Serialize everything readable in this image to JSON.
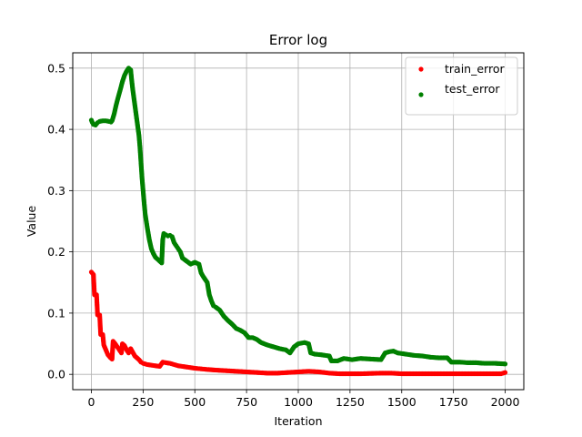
{
  "chart_data": {
    "type": "scatter",
    "title": "Error log",
    "xlabel": "Iteration",
    "ylabel": "Value",
    "xlim": [
      -90,
      2090
    ],
    "ylim": [
      -0.025,
      0.525
    ],
    "xticks": [
      0,
      250,
      500,
      750,
      1000,
      1250,
      1500,
      1750,
      2000
    ],
    "yticks": [
      0.0,
      0.1,
      0.2,
      0.3,
      0.4,
      0.5
    ],
    "ytick_labels": [
      "0.0",
      "0.1",
      "0.2",
      "0.3",
      "0.4",
      "0.5"
    ],
    "grid": true,
    "legend_position": "top-right",
    "series": [
      {
        "name": "train_error",
        "color": "#ff0000",
        "marker": "dot",
        "points": [
          [
            0,
            0.167
          ],
          [
            10,
            0.163
          ],
          [
            15,
            0.13
          ],
          [
            25,
            0.13
          ],
          [
            30,
            0.097
          ],
          [
            40,
            0.097
          ],
          [
            45,
            0.065
          ],
          [
            55,
            0.065
          ],
          [
            60,
            0.048
          ],
          [
            70,
            0.04
          ],
          [
            80,
            0.032
          ],
          [
            90,
            0.028
          ],
          [
            100,
            0.025
          ],
          [
            105,
            0.054
          ],
          [
            115,
            0.05
          ],
          [
            125,
            0.045
          ],
          [
            135,
            0.04
          ],
          [
            145,
            0.035
          ],
          [
            150,
            0.05
          ],
          [
            160,
            0.047
          ],
          [
            170,
            0.04
          ],
          [
            180,
            0.035
          ],
          [
            190,
            0.042
          ],
          [
            200,
            0.036
          ],
          [
            210,
            0.03
          ],
          [
            220,
            0.027
          ],
          [
            230,
            0.024
          ],
          [
            240,
            0.02
          ],
          [
            250,
            0.018
          ],
          [
            270,
            0.016
          ],
          [
            290,
            0.015
          ],
          [
            310,
            0.014
          ],
          [
            330,
            0.013
          ],
          [
            345,
            0.02
          ],
          [
            360,
            0.019
          ],
          [
            380,
            0.018
          ],
          [
            400,
            0.016
          ],
          [
            420,
            0.014
          ],
          [
            440,
            0.013
          ],
          [
            460,
            0.012
          ],
          [
            480,
            0.011
          ],
          [
            500,
            0.01
          ],
          [
            530,
            0.009
          ],
          [
            560,
            0.008
          ],
          [
            600,
            0.007
          ],
          [
            650,
            0.006
          ],
          [
            700,
            0.005
          ],
          [
            750,
            0.004
          ],
          [
            800,
            0.003
          ],
          [
            850,
            0.002
          ],
          [
            900,
            0.002
          ],
          [
            950,
            0.003
          ],
          [
            1000,
            0.004
          ],
          [
            1050,
            0.005
          ],
          [
            1100,
            0.004
          ],
          [
            1150,
            0.002
          ],
          [
            1200,
            0.001
          ],
          [
            1300,
            0.001
          ],
          [
            1400,
            0.002
          ],
          [
            1450,
            0.002
          ],
          [
            1500,
            0.001
          ],
          [
            1600,
            0.001
          ],
          [
            1700,
            0.001
          ],
          [
            1800,
            0.001
          ],
          [
            1900,
            0.001
          ],
          [
            1980,
            0.001
          ],
          [
            2000,
            0.003
          ]
        ]
      },
      {
        "name": "test_error",
        "color": "#008000",
        "marker": "dot",
        "points": [
          [
            0,
            0.415
          ],
          [
            5,
            0.411
          ],
          [
            10,
            0.408
          ],
          [
            20,
            0.407
          ],
          [
            30,
            0.411
          ],
          [
            40,
            0.413
          ],
          [
            55,
            0.414
          ],
          [
            70,
            0.414
          ],
          [
            85,
            0.413
          ],
          [
            95,
            0.412
          ],
          [
            100,
            0.414
          ],
          [
            110,
            0.425
          ],
          [
            120,
            0.44
          ],
          [
            130,
            0.453
          ],
          [
            140,
            0.465
          ],
          [
            150,
            0.478
          ],
          [
            160,
            0.488
          ],
          [
            170,
            0.495
          ],
          [
            180,
            0.5
          ],
          [
            190,
            0.497
          ],
          [
            195,
            0.48
          ],
          [
            200,
            0.465
          ],
          [
            210,
            0.44
          ],
          [
            220,
            0.415
          ],
          [
            230,
            0.39
          ],
          [
            235,
            0.37
          ],
          [
            240,
            0.345
          ],
          [
            245,
            0.32
          ],
          [
            250,
            0.3
          ],
          [
            255,
            0.28
          ],
          [
            260,
            0.262
          ],
          [
            270,
            0.24
          ],
          [
            280,
            0.22
          ],
          [
            290,
            0.205
          ],
          [
            300,
            0.197
          ],
          [
            310,
            0.191
          ],
          [
            320,
            0.188
          ],
          [
            330,
            0.185
          ],
          [
            340,
            0.182
          ],
          [
            345,
            0.22
          ],
          [
            350,
            0.23
          ],
          [
            360,
            0.228
          ],
          [
            370,
            0.226
          ],
          [
            380,
            0.227
          ],
          [
            390,
            0.225
          ],
          [
            400,
            0.215
          ],
          [
            410,
            0.21
          ],
          [
            420,
            0.205
          ],
          [
            430,
            0.2
          ],
          [
            440,
            0.19
          ],
          [
            460,
            0.185
          ],
          [
            480,
            0.18
          ],
          [
            500,
            0.183
          ],
          [
            520,
            0.18
          ],
          [
            530,
            0.166
          ],
          [
            540,
            0.16
          ],
          [
            560,
            0.15
          ],
          [
            570,
            0.13
          ],
          [
            580,
            0.12
          ],
          [
            590,
            0.112
          ],
          [
            600,
            0.11
          ],
          [
            620,
            0.105
          ],
          [
            640,
            0.095
          ],
          [
            660,
            0.088
          ],
          [
            680,
            0.082
          ],
          [
            700,
            0.075
          ],
          [
            720,
            0.072
          ],
          [
            740,
            0.068
          ],
          [
            760,
            0.06
          ],
          [
            780,
            0.06
          ],
          [
            800,
            0.057
          ],
          [
            820,
            0.052
          ],
          [
            850,
            0.048
          ],
          [
            880,
            0.045
          ],
          [
            910,
            0.042
          ],
          [
            940,
            0.04
          ],
          [
            960,
            0.035
          ],
          [
            980,
            0.045
          ],
          [
            1000,
            0.05
          ],
          [
            1030,
            0.052
          ],
          [
            1050,
            0.05
          ],
          [
            1060,
            0.035
          ],
          [
            1080,
            0.033
          ],
          [
            1110,
            0.032
          ],
          [
            1150,
            0.03
          ],
          [
            1160,
            0.022
          ],
          [
            1190,
            0.022
          ],
          [
            1220,
            0.026
          ],
          [
            1260,
            0.024
          ],
          [
            1300,
            0.026
          ],
          [
            1350,
            0.025
          ],
          [
            1400,
            0.024
          ],
          [
            1420,
            0.035
          ],
          [
            1440,
            0.037
          ],
          [
            1460,
            0.038
          ],
          [
            1480,
            0.035
          ],
          [
            1520,
            0.033
          ],
          [
            1560,
            0.031
          ],
          [
            1600,
            0.03
          ],
          [
            1640,
            0.028
          ],
          [
            1680,
            0.027
          ],
          [
            1720,
            0.027
          ],
          [
            1740,
            0.02
          ],
          [
            1780,
            0.02
          ],
          [
            1820,
            0.019
          ],
          [
            1860,
            0.019
          ],
          [
            1900,
            0.018
          ],
          [
            1950,
            0.018
          ],
          [
            2000,
            0.017
          ]
        ]
      }
    ]
  }
}
